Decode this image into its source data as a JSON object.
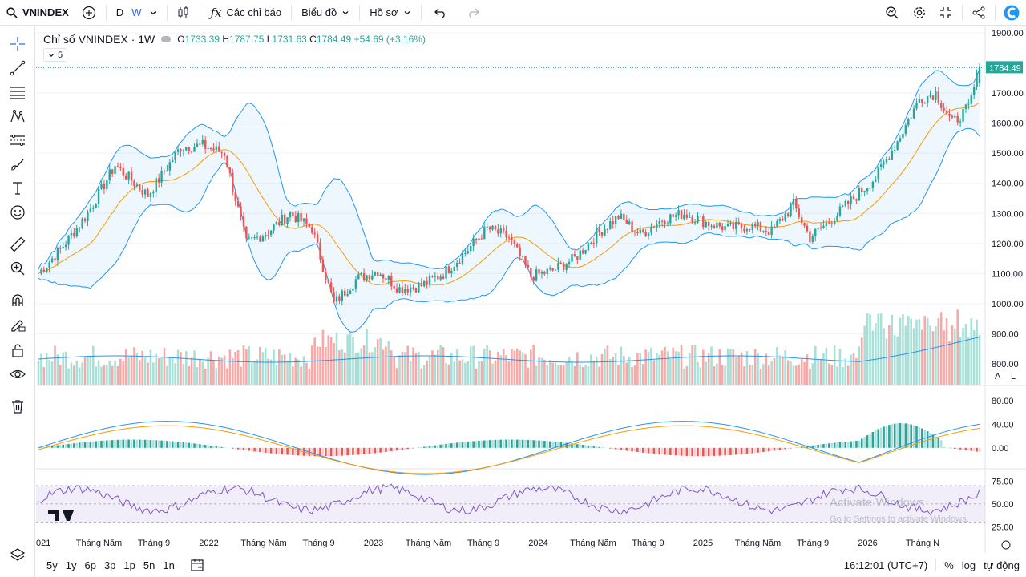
{
  "toolbar": {
    "symbol": "VNINDEX",
    "interval_day": "D",
    "interval_week": "W",
    "indicators": "Các chỉ báo",
    "chart_type": "Biểu đồ",
    "profile": "Hồ sơ"
  },
  "legend": {
    "title": "Chỉ số VNINDEX · 1W",
    "o_label": "O",
    "o": "1733.39",
    "h_label": "H",
    "h": "1787.75",
    "l_label": "L",
    "l": "1731.63",
    "c_label": "C",
    "c": "1784.49",
    "change": "+54.69 (+3.16%)",
    "collapse_count": "5"
  },
  "price_axis": {
    "labels": [
      "1900.00",
      "1700.00",
      "1600.00",
      "1500.00",
      "1400.00",
      "1300.00",
      "1200.00",
      "1100.00",
      "1000.00",
      "900.00",
      "800.00"
    ],
    "last_price": "1784.49",
    "macd_labels": [
      "80.00",
      "40.00",
      "0.00"
    ],
    "rsi_labels": [
      "75.00",
      "50.00",
      "25.00"
    ],
    "a_btn": "A",
    "l_btn": "L"
  },
  "time_axis": [
    "021",
    "Tháng Năm",
    "Tháng 9",
    "2022",
    "Tháng Năm",
    "Tháng 9",
    "2023",
    "Tháng Năm",
    "Tháng 9",
    "2024",
    "Tháng Năm",
    "Tháng 9",
    "2025",
    "Tháng Năm",
    "Tháng 9",
    "2026",
    "Tháng N"
  ],
  "watermark": {
    "line1": "Activate Windows",
    "line2": "Go to Settings to activate Windows."
  },
  "bottom": {
    "ranges": [
      "5y",
      "1y",
      "6p",
      "3p",
      "1p",
      "5n",
      "1n"
    ],
    "clock": "16:12:01 (UTC+7)",
    "percent": "%",
    "log": "log",
    "auto": "tự động"
  },
  "colors": {
    "up": "#26a69a",
    "down": "#ef5350",
    "band": "#2196f3",
    "ma": "#ff9800",
    "rsi": "#7e57c2"
  },
  "chart_data": {
    "type": "candlestick",
    "symbol": "VNINDEX",
    "interval": "1W",
    "ylim": [
      990,
      1900
    ],
    "last": {
      "open": 1733.39,
      "high": 1787.75,
      "low": 1731.63,
      "close": 1784.49,
      "change": 54.69,
      "change_pct": 3.16
    },
    "close_path": [
      [
        0,
        1100
      ],
      [
        8,
        1180
      ],
      [
        18,
        1300
      ],
      [
        28,
        1460
      ],
      [
        40,
        1360
      ],
      [
        52,
        1520
      ],
      [
        60,
        1525
      ],
      [
        68,
        1500
      ],
      [
        76,
        1200
      ],
      [
        84,
        1240
      ],
      [
        92,
        1300
      ],
      [
        100,
        1250
      ],
      [
        108,
        1000
      ],
      [
        116,
        1080
      ],
      [
        124,
        1110
      ],
      [
        132,
        1050
      ],
      [
        140,
        1060
      ],
      [
        148,
        1100
      ],
      [
        156,
        1170
      ],
      [
        164,
        1250
      ],
      [
        172,
        1220
      ],
      [
        180,
        1090
      ],
      [
        188,
        1110
      ],
      [
        196,
        1150
      ],
      [
        204,
        1230
      ],
      [
        212,
        1290
      ],
      [
        220,
        1230
      ],
      [
        228,
        1280
      ],
      [
        236,
        1300
      ],
      [
        244,
        1270
      ],
      [
        252,
        1250
      ],
      [
        260,
        1260
      ],
      [
        268,
        1240
      ],
      [
        276,
        1330
      ],
      [
        282,
        1220
      ],
      [
        290,
        1280
      ],
      [
        298,
        1350
      ],
      [
        306,
        1420
      ],
      [
        314,
        1540
      ],
      [
        322,
        1680
      ],
      [
        328,
        1700
      ],
      [
        334,
        1600
      ],
      [
        340,
        1650
      ],
      [
        344,
        1784
      ]
    ],
    "macd_range": [
      -30,
      100
    ],
    "rsi_range": [
      20,
      85
    ]
  }
}
